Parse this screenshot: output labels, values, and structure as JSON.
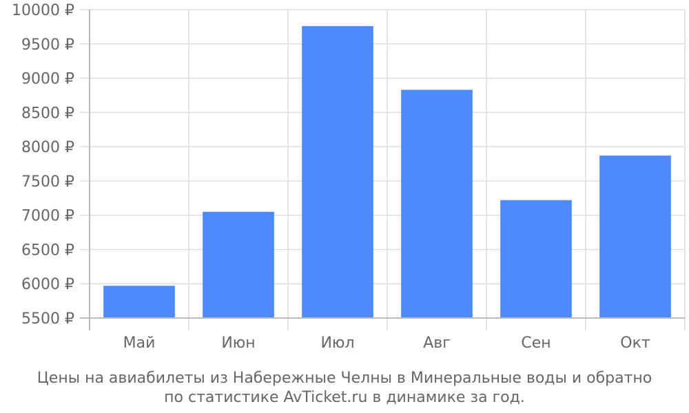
{
  "chart_data": {
    "type": "bar",
    "categories": [
      "Май",
      "Июн",
      "Июл",
      "Авг",
      "Сен",
      "Окт"
    ],
    "values": [
      5970,
      7050,
      9760,
      8830,
      7220,
      7870
    ],
    "ylim": [
      5500,
      10000
    ],
    "yticks": [
      5500,
      6000,
      6500,
      7000,
      7500,
      8000,
      8500,
      9000,
      9500,
      10000
    ],
    "ytick_labels": [
      "5500 ₽",
      "6000 ₽",
      "6500 ₽",
      "7000 ₽",
      "7500 ₽",
      "8000 ₽",
      "8500 ₽",
      "9000 ₽",
      "9500 ₽",
      "10000 ₽"
    ],
    "caption_line1": "Цены на авиабилеты из Набережные Челны в Минеральные воды и обратно",
    "caption_line2": "по статистике AvTicket.ru в динамике за год.",
    "grid": true,
    "legend": "none",
    "colors": {
      "bar": "#4d8afb",
      "grid": "#dddddd",
      "axis": "#bbbbbb",
      "text": "#666666"
    }
  }
}
